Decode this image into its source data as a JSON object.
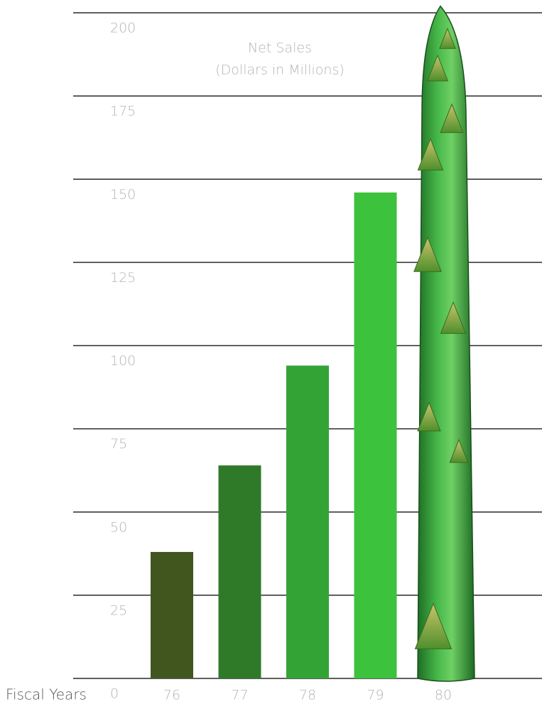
{
  "chart_data": {
    "type": "bar",
    "title": "Net Sales",
    "subtitle": "(Dollars in Millions)",
    "x_label": "Fiscal Years",
    "categories": [
      "76",
      "77",
      "78",
      "79",
      "80"
    ],
    "values": [
      38,
      64,
      94,
      146,
      202
    ],
    "colors": [
      "#41561f",
      "#2e7a29",
      "#34a336",
      "#3cc23c",
      "#3aab3e"
    ],
    "ylim": [
      0,
      200
    ],
    "yticks": [
      0,
      25,
      50,
      75,
      100,
      125,
      150,
      175,
      200
    ],
    "grid": true
  }
}
